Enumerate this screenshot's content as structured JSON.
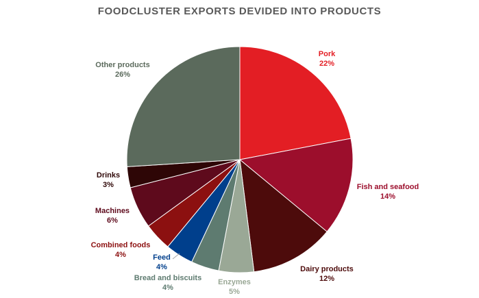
{
  "chart_data": {
    "type": "pie",
    "title": "FOODCLUSTER EXPORTS DEVIDED INTO PRODUCTS",
    "slices": [
      {
        "name": "Pork",
        "value": 22,
        "label": "22%",
        "color": "#e31e24",
        "label_color": "#e31e24"
      },
      {
        "name": "Fish and seafood",
        "value": 14,
        "label": "14%",
        "color": "#9c0e2c",
        "label_color": "#9c0e2c"
      },
      {
        "name": "Dairy products",
        "value": 12,
        "label": "12%",
        "color": "#4d0b0b",
        "label_color": "#4d0b0b"
      },
      {
        "name": "Enzymes",
        "value": 5,
        "label": "5%",
        "color": "#9aa896",
        "label_color": "#9aa896"
      },
      {
        "name": "Bread and biscuits",
        "value": 4,
        "label": "4%",
        "color": "#5e7b70",
        "label_color": "#5e7b70"
      },
      {
        "name": "Feed",
        "value": 4,
        "label": "4%",
        "color": "#003f8c",
        "label_color": "#003f8c"
      },
      {
        "name": "Combined foods",
        "value": 4,
        "label": "4%",
        "color": "#8c1010",
        "label_color": "#8c1010"
      },
      {
        "name": "Machines",
        "value": 6,
        "label": "6%",
        "color": "#5e0a1c",
        "label_color": "#5e0a1c"
      },
      {
        "name": "Drinks",
        "value": 3,
        "label": "3%",
        "color": "#2e0606",
        "label_color": "#2e0606"
      },
      {
        "name": "Other products",
        "value": 26,
        "label": "26%",
        "color": "#5b6a5c",
        "label_color": "#5b6a5c"
      }
    ]
  }
}
